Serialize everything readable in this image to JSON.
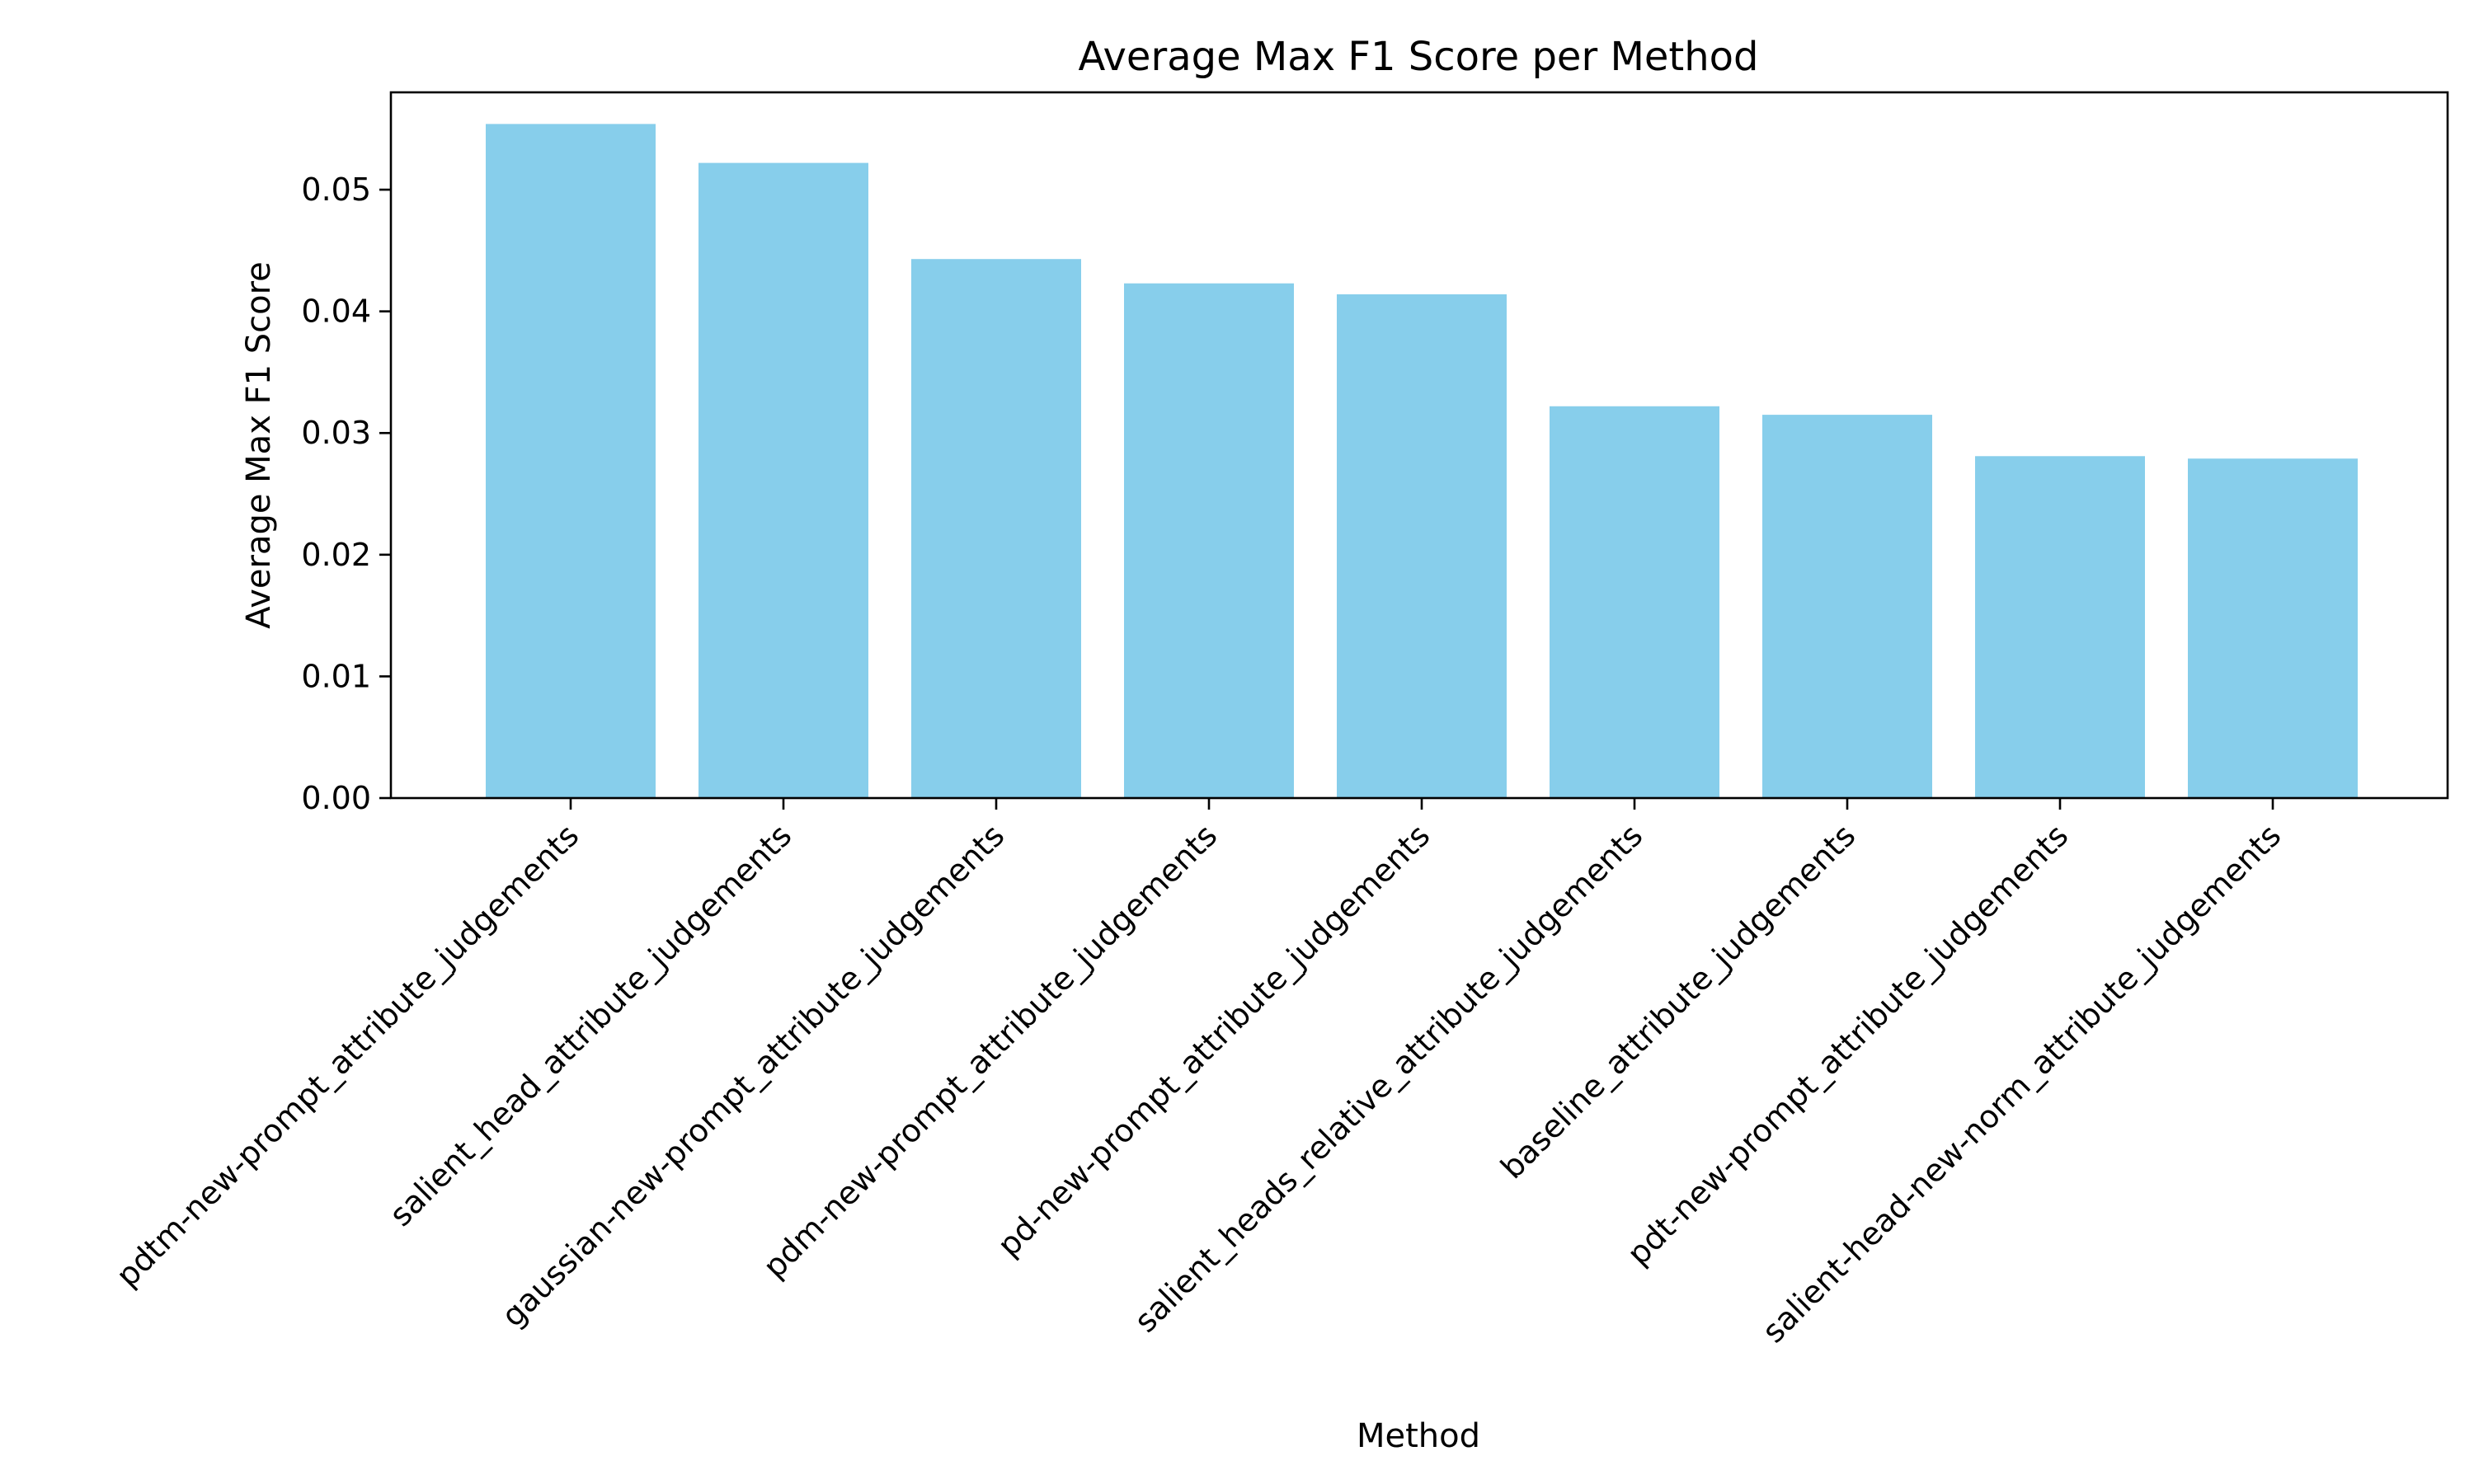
{
  "chart_data": {
    "type": "bar",
    "title": "Average Max F1 Score per Method",
    "xlabel": "Method",
    "ylabel": "Average Max F1 Score",
    "categories": [
      "pdtm-new-prompt_attribute_judgements",
      "salient_head_attribute_judgements",
      "gaussian-new-prompt_attribute_judgements",
      "pdm-new-prompt_attribute_judgements",
      "pd-new-prompt_attribute_judgements",
      "salient_heads_relative_attribute_judgements",
      "baseline_attribute_judgements",
      "pdt-new-prompt_attribute_judgements",
      "salient-head-new-norm_attribute_judgements"
    ],
    "values": [
      0.0554,
      0.0522,
      0.0443,
      0.0423,
      0.0414,
      0.0322,
      0.0315,
      0.0281,
      0.0279
    ],
    "ylim": [
      0,
      0.058
    ],
    "yticks": [
      "0.00",
      "0.01",
      "0.02",
      "0.03",
      "0.04",
      "0.05"
    ],
    "bar_color": "#87CEEB",
    "grid": false,
    "legend": "none"
  }
}
